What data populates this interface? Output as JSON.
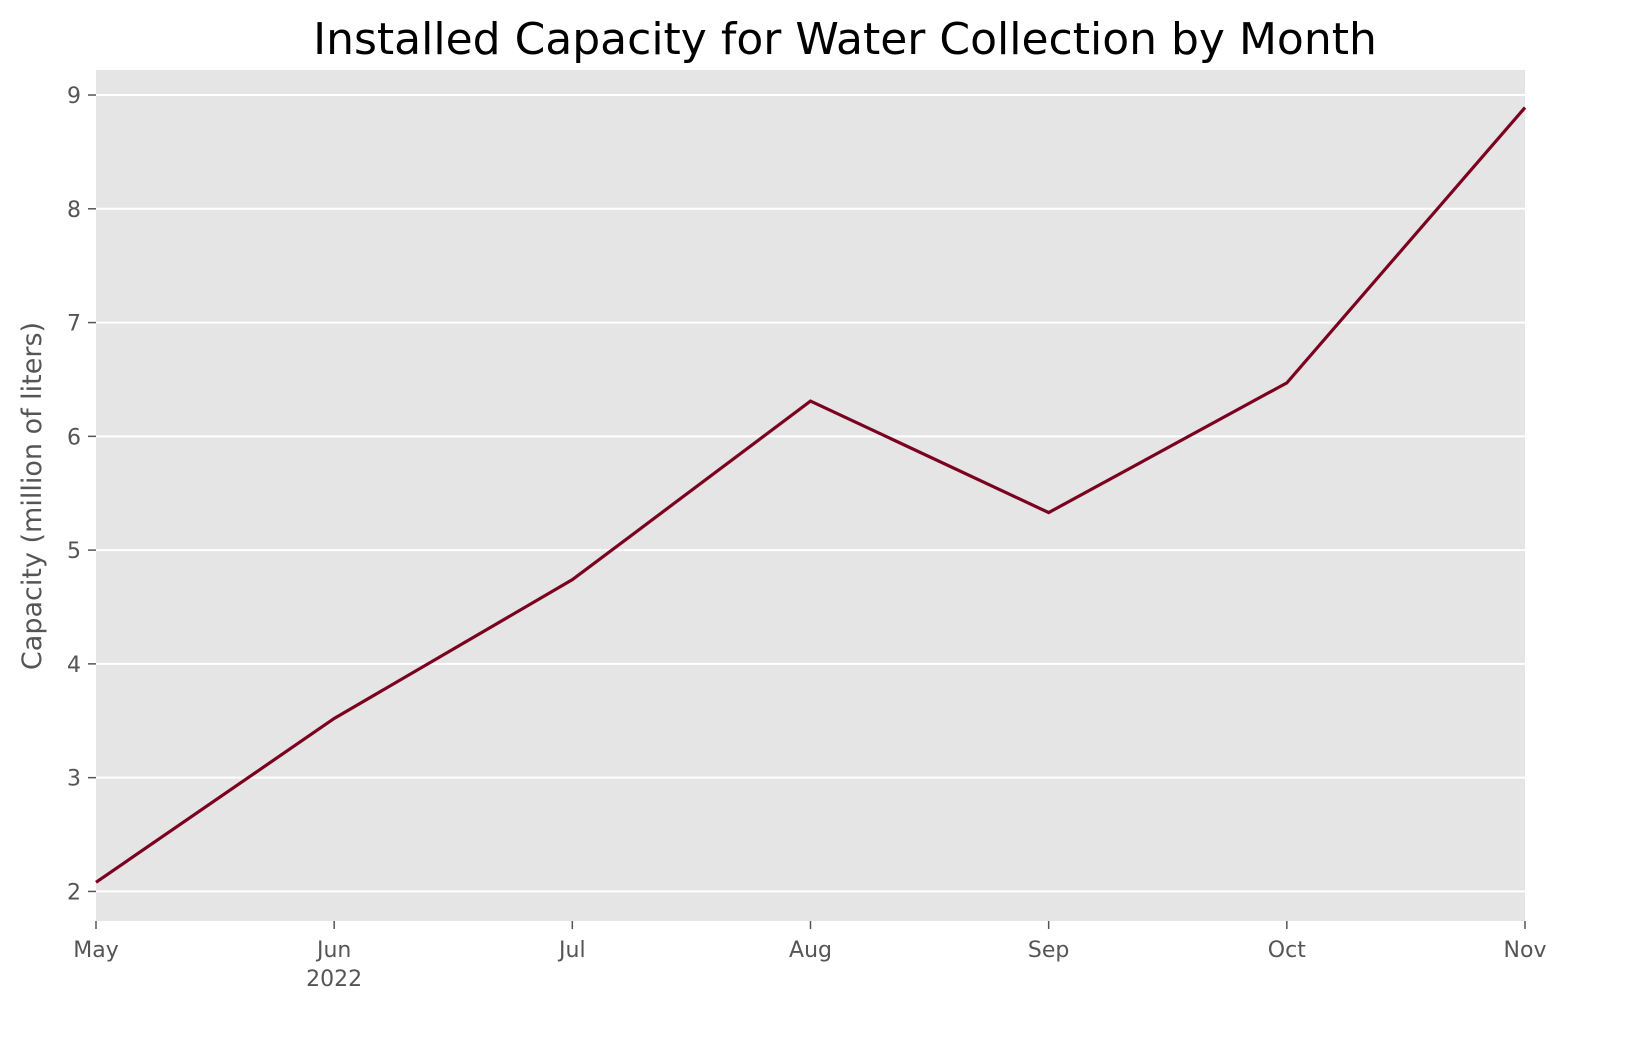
{
  "chart_data": {
    "type": "line",
    "title": "Installed Capacity for Water Collection by Month",
    "xlabel": "",
    "ylabel": "Capacity (million of liters)",
    "x": [
      "May",
      "Jun",
      "Jul",
      "Aug",
      "Sep",
      "Oct",
      "Nov"
    ],
    "x_sublabels": [
      "",
      "2022",
      "",
      "",
      "",
      "",
      ""
    ],
    "series": [
      {
        "name": "Installed Capacity",
        "values": [
          2.08,
          3.52,
          4.74,
          6.31,
          5.33,
          6.47,
          8.89
        ],
        "color": "#7b0020"
      }
    ],
    "yticks": [
      2,
      3,
      4,
      5,
      6,
      7,
      8,
      9
    ],
    "ytick_labels": [
      "2",
      "3",
      "4",
      "5",
      "6",
      "7",
      "8",
      "9"
    ],
    "ylim": [
      1.74,
      9.22
    ],
    "grid": true,
    "style": {
      "background": "#e5e5e5",
      "gridline": "#ffffff",
      "text": "#555555"
    }
  }
}
